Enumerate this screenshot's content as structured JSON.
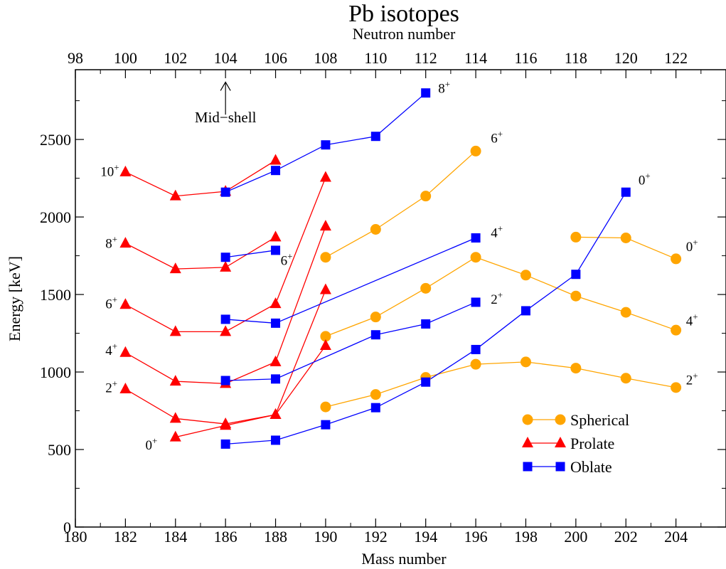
{
  "chart_data": {
    "type": "line",
    "title": "Pb isotopes",
    "xlabel": "Mass number",
    "ylabel": "Energy [keV]",
    "x2label": "Neutron number",
    "xlim": [
      180,
      206
    ],
    "ylim": [
      0,
      2950
    ],
    "x_ticks": [
      180,
      182,
      184,
      186,
      188,
      190,
      192,
      194,
      196,
      198,
      200,
      202,
      204
    ],
    "x2_ticks": [
      98,
      100,
      102,
      104,
      106,
      108,
      110,
      112,
      114,
      116,
      118,
      120,
      122
    ],
    "y_ticks": [
      0,
      500,
      1000,
      1500,
      2000,
      2500
    ],
    "legend": {
      "position": "lower-right",
      "entries": [
        "Spherical",
        "Prolate",
        "Oblate"
      ]
    },
    "colors": {
      "Spherical": "#ffa500",
      "Prolate": "#ff0000",
      "Oblate": "#0000ff"
    },
    "series": [
      {
        "name": "Spherical",
        "group": "Spherical",
        "points": [
          [
            190,
            775
          ],
          [
            192,
            855
          ],
          [
            194,
            965
          ],
          [
            196,
            1050
          ],
          [
            198,
            1065
          ],
          [
            200,
            1025
          ],
          [
            202,
            960
          ],
          [
            204,
            900
          ]
        ]
      },
      {
        "name": "Spherical",
        "group": "Spherical",
        "points": [
          [
            190,
            1230
          ],
          [
            192,
            1355
          ],
          [
            194,
            1540
          ],
          [
            196,
            1740
          ],
          [
            198,
            1625
          ],
          [
            200,
            1490
          ],
          [
            202,
            1385
          ],
          [
            204,
            1270
          ]
        ]
      },
      {
        "name": "Spherical",
        "group": "Spherical",
        "points": [
          [
            190,
            1740
          ],
          [
            192,
            1920
          ],
          [
            194,
            2135
          ],
          [
            196,
            2425
          ]
        ]
      },
      {
        "name": "Spherical",
        "group": "Spherical",
        "points": [
          [
            200,
            1870
          ],
          [
            202,
            1865
          ],
          [
            204,
            1730
          ]
        ]
      },
      {
        "name": "Prolate",
        "group": "Prolate",
        "points": [
          [
            184,
            580
          ],
          [
            186,
            655
          ],
          [
            188,
            725
          ],
          [
            190,
            1170
          ]
        ]
      },
      {
        "name": "Prolate",
        "group": "Prolate",
        "points": [
          [
            182,
            890
          ],
          [
            184,
            700
          ],
          [
            186,
            665
          ],
          [
            188,
            725
          ],
          [
            190,
            1530
          ]
        ]
      },
      {
        "name": "Prolate",
        "group": "Prolate",
        "points": [
          [
            182,
            1125
          ],
          [
            184,
            940
          ],
          [
            186,
            925
          ],
          [
            188,
            1065
          ],
          [
            190,
            1940
          ]
        ]
      },
      {
        "name": "Prolate",
        "group": "Prolate",
        "points": [
          [
            182,
            1435
          ],
          [
            184,
            1260
          ],
          [
            186,
            1260
          ],
          [
            188,
            1440
          ],
          [
            190,
            2255
          ]
        ]
      },
      {
        "name": "Prolate",
        "group": "Prolate",
        "points": [
          [
            182,
            1830
          ],
          [
            184,
            1665
          ],
          [
            186,
            1675
          ],
          [
            188,
            1870
          ]
        ]
      },
      {
        "name": "Prolate",
        "group": "Prolate",
        "points": [
          [
            182,
            2290
          ],
          [
            184,
            2135
          ],
          [
            186,
            2165
          ],
          [
            188,
            2365
          ]
        ]
      },
      {
        "name": "Oblate",
        "group": "Oblate",
        "points": [
          [
            186,
            535
          ],
          [
            188,
            560
          ],
          [
            190,
            660
          ],
          [
            192,
            770
          ],
          [
            194,
            935
          ],
          [
            196,
            1145
          ],
          [
            198,
            1395
          ],
          [
            200,
            1630
          ],
          [
            202,
            2160
          ]
        ]
      },
      {
        "name": "Oblate",
        "group": "Oblate",
        "points": [
          [
            186,
            945
          ],
          [
            188,
            955
          ],
          [
            192,
            1240
          ],
          [
            194,
            1310
          ],
          [
            196,
            1450
          ]
        ]
      },
      {
        "name": "Oblate",
        "group": "Oblate",
        "points": [
          [
            186,
            1340
          ],
          [
            188,
            1315
          ],
          [
            196,
            1865
          ]
        ]
      },
      {
        "name": "Oblate",
        "group": "Oblate",
        "points": [
          [
            186,
            1740
          ],
          [
            188,
            1785
          ]
        ]
      },
      {
        "name": "Oblate",
        "group": "Oblate",
        "points": [
          [
            186,
            2160
          ],
          [
            188,
            2300
          ],
          [
            190,
            2465
          ],
          [
            192,
            2520
          ],
          [
            194,
            2800
          ]
        ]
      }
    ],
    "level_labels": [
      {
        "base": "0",
        "sup": "+",
        "x": 182.8,
        "y": 500
      },
      {
        "base": "2",
        "sup": "+",
        "x": 181.2,
        "y": 870
      },
      {
        "base": "4",
        "sup": "+",
        "x": 181.2,
        "y": 1110
      },
      {
        "base": "6",
        "sup": "+",
        "x": 181.2,
        "y": 1410
      },
      {
        "base": "8",
        "sup": "+",
        "x": 181.2,
        "y": 1800
      },
      {
        "base": "10",
        "sup": "+",
        "x": 181.0,
        "y": 2265
      },
      {
        "base": "6",
        "sup": "+",
        "x": 188.2,
        "y": 1690
      },
      {
        "base": "8",
        "sup": "+",
        "x": 194.5,
        "y": 2800
      },
      {
        "base": "6",
        "sup": "+",
        "x": 196.6,
        "y": 2480
      },
      {
        "base": "4",
        "sup": "+",
        "x": 196.6,
        "y": 1870
      },
      {
        "base": "2",
        "sup": "+",
        "x": 196.6,
        "y": 1440
      },
      {
        "base": "0",
        "sup": "+",
        "x": 202.5,
        "y": 2210
      },
      {
        "base": "0",
        "sup": "+",
        "x": 204.4,
        "y": 1780
      },
      {
        "base": "4",
        "sup": "+",
        "x": 204.4,
        "y": 1300
      },
      {
        "base": "2",
        "sup": "+",
        "x": 204.4,
        "y": 920
      }
    ],
    "annotation": {
      "text": "Mid−shell",
      "x": 186,
      "y_text": 2610,
      "arrow_from": 2660,
      "arrow_to": 2870
    }
  }
}
